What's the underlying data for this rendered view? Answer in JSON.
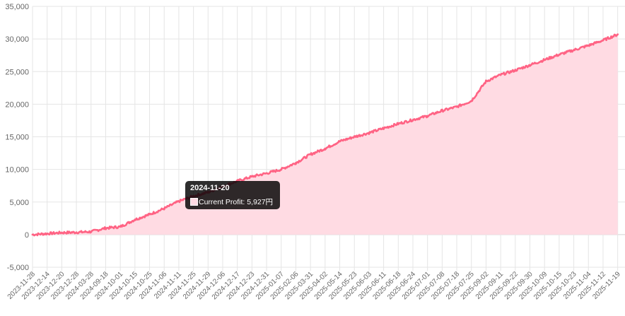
{
  "chart_data": {
    "type": "area",
    "title": "",
    "xlabel": "",
    "ylabel": "",
    "ylim": [
      -5000,
      35000
    ],
    "yticks": [
      -5000,
      0,
      5000,
      10000,
      15000,
      20000,
      25000,
      30000,
      35000
    ],
    "ytick_labels": [
      "-5,000",
      "0",
      "5,000",
      "10,000",
      "15,000",
      "20,000",
      "25,000",
      "30,000",
      "35,000"
    ],
    "xtick_labels": [
      "2023-11-28",
      "2023-12-14",
      "2023-12-20",
      "2023-12-28",
      "2024-03-28",
      "2024-09-18",
      "2024-10-01",
      "2024-10-15",
      "2024-10-25",
      "2024-11-06",
      "2024-11-11",
      "2024-11-25",
      "2024-11-29",
      "2024-12-06",
      "2024-12-17",
      "2024-12-23",
      "2024-12-31",
      "2025-01-07",
      "2025-02-06",
      "2025-03-31",
      "2025-04-02",
      "2025-05-14",
      "2025-05-23",
      "2025-06-03",
      "2025-06-11",
      "2025-06-18",
      "2025-06-24",
      "2025-07-01",
      "2025-07-08",
      "2025-07-18",
      "2025-07-25",
      "2025-09-02",
      "2025-09-11",
      "2025-09-22",
      "2025-09-30",
      "2025-10-09",
      "2025-10-15",
      "2025-10-23",
      "2025-11-04",
      "2025-11-12",
      "2025-11-19"
    ],
    "grid": true,
    "legend": "none",
    "line_color": "#ff6384",
    "fill_color": "#ffdbe3",
    "series": [
      {
        "name": "Current Profit",
        "x": [
          "2023-11-28",
          "2023-12-14",
          "2023-12-20",
          "2023-12-28",
          "2024-03-28",
          "2024-09-18",
          "2024-10-01",
          "2024-10-15",
          "2024-10-25",
          "2024-11-06",
          "2024-11-11",
          "2024-11-25",
          "2024-11-29",
          "2024-12-06",
          "2024-12-17",
          "2024-12-23",
          "2024-12-31",
          "2025-01-07",
          "2025-02-06",
          "2025-03-31",
          "2025-04-02",
          "2025-05-14",
          "2025-05-23",
          "2025-06-03",
          "2025-06-11",
          "2025-06-18",
          "2025-06-24",
          "2025-07-01",
          "2025-07-08",
          "2025-07-18",
          "2025-07-25",
          "2025-09-02",
          "2025-09-11",
          "2025-09-22",
          "2025-09-30",
          "2025-10-09",
          "2025-10-15",
          "2025-10-23",
          "2025-11-04",
          "2025-11-12",
          "2025-11-19"
        ],
        "y": [
          0,
          150,
          300,
          350,
          450,
          1000,
          1200,
          2300,
          3100,
          4000,
          5100,
          5900,
          6500,
          7400,
          8200,
          8900,
          9400,
          10000,
          11000,
          12300,
          13200,
          14300,
          15000,
          15600,
          16300,
          17000,
          17600,
          18200,
          19000,
          19600,
          20500,
          23500,
          24500,
          25200,
          26000,
          26800,
          27600,
          28300,
          29000,
          29800,
          30700
        ]
      }
    ]
  },
  "tooltip": {
    "title": "2024-11-20",
    "label": "Current Profit: 5,927円",
    "swatch_color": "#ffdbe3"
  }
}
